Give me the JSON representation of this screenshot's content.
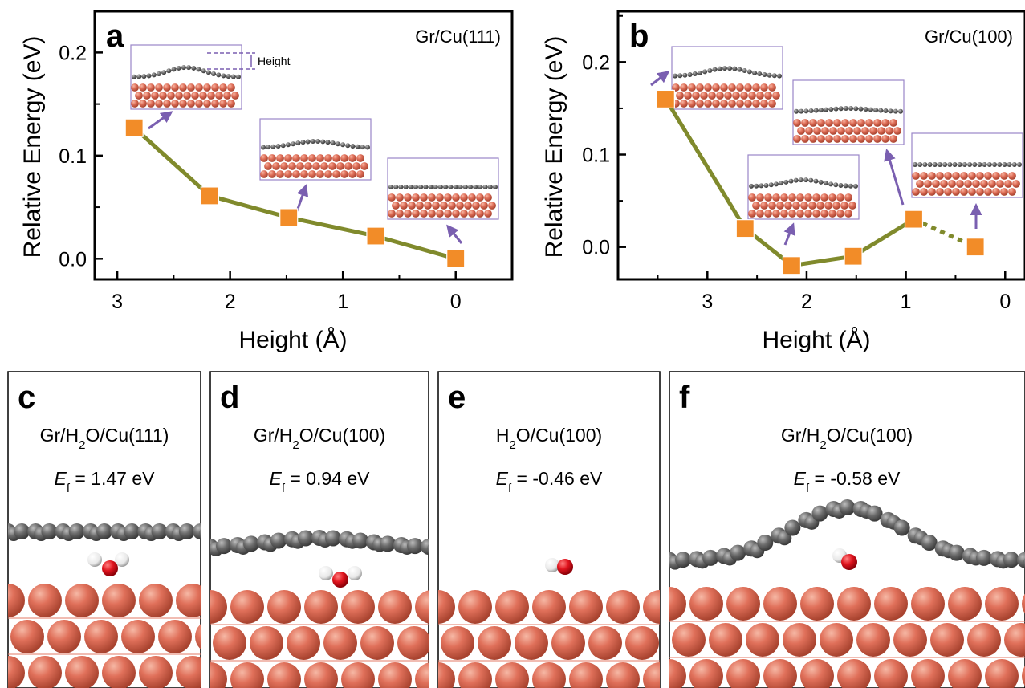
{
  "chart_data": [
    {
      "type": "line",
      "panel": "a",
      "system": "Gr/Cu(111)",
      "xlabel": "Height (Å)",
      "ylabel": "Relative Energy (eV)",
      "xlim": [
        3.2,
        -0.5
      ],
      "ylim": [
        -0.02,
        0.24
      ],
      "xticks": [
        "3",
        "2",
        "1",
        "0"
      ],
      "yticks": [
        "0.0",
        "0.1",
        "0.2"
      ],
      "x": [
        2.85,
        2.18,
        1.48,
        0.71,
        0.0
      ],
      "y": [
        0.127,
        0.061,
        0.04,
        0.022,
        0.0
      ],
      "marker_color": "#f28c28",
      "line_color": "#808a2c",
      "annotation": "Height"
    },
    {
      "type": "line",
      "panel": "b",
      "system": "Gr/Cu(100)",
      "xlabel": "Height (Å)",
      "ylabel": "Relative Energy (eV)",
      "xlim": [
        3.9,
        -0.2
      ],
      "ylim": [
        -0.035,
        0.255
      ],
      "xticks": [
        "3",
        "2",
        "1",
        "0"
      ],
      "yticks": [
        "0.0",
        "0.1",
        "0.2"
      ],
      "x": [
        3.42,
        2.62,
        2.15,
        1.53,
        0.92,
        0.3
      ],
      "y": [
        0.16,
        0.02,
        -0.02,
        -0.01,
        0.03,
        0.0
      ],
      "dashed_last_segment": true,
      "marker_color": "#f28c28",
      "line_color": "#808a2c"
    }
  ],
  "structures": [
    {
      "letter": "c",
      "title_parts": [
        "Gr/H",
        "2",
        "O/Cu(111)"
      ],
      "ef_label": "E",
      "ef_sub": "f",
      "ef_value": " = 1.47 eV"
    },
    {
      "letter": "d",
      "title_parts": [
        "Gr/H",
        "2",
        "O/Cu(100)"
      ],
      "ef_label": "E",
      "ef_sub": "f",
      "ef_value": " = 0.94 eV"
    },
    {
      "letter": "e",
      "title_parts": [
        "H",
        "2",
        "O/Cu(100)"
      ],
      "ef_label": "E",
      "ef_sub": "f",
      "ef_value": " = -0.46 eV"
    },
    {
      "letter": "f",
      "title_parts": [
        "Gr/H",
        "2",
        "O/Cu(100)"
      ],
      "ef_label": "E",
      "ef_sub": "f",
      "ef_value": " = -0.58 eV"
    }
  ],
  "colors": {
    "copper": "#e0705a",
    "copper_dark": "#a8432f",
    "graphene": "#6b6b6b",
    "oxygen": "#e0141e",
    "hydrogen": "#f4f4f4",
    "arrow": "#7a5fb0",
    "inset_border": "#9a86c8"
  }
}
